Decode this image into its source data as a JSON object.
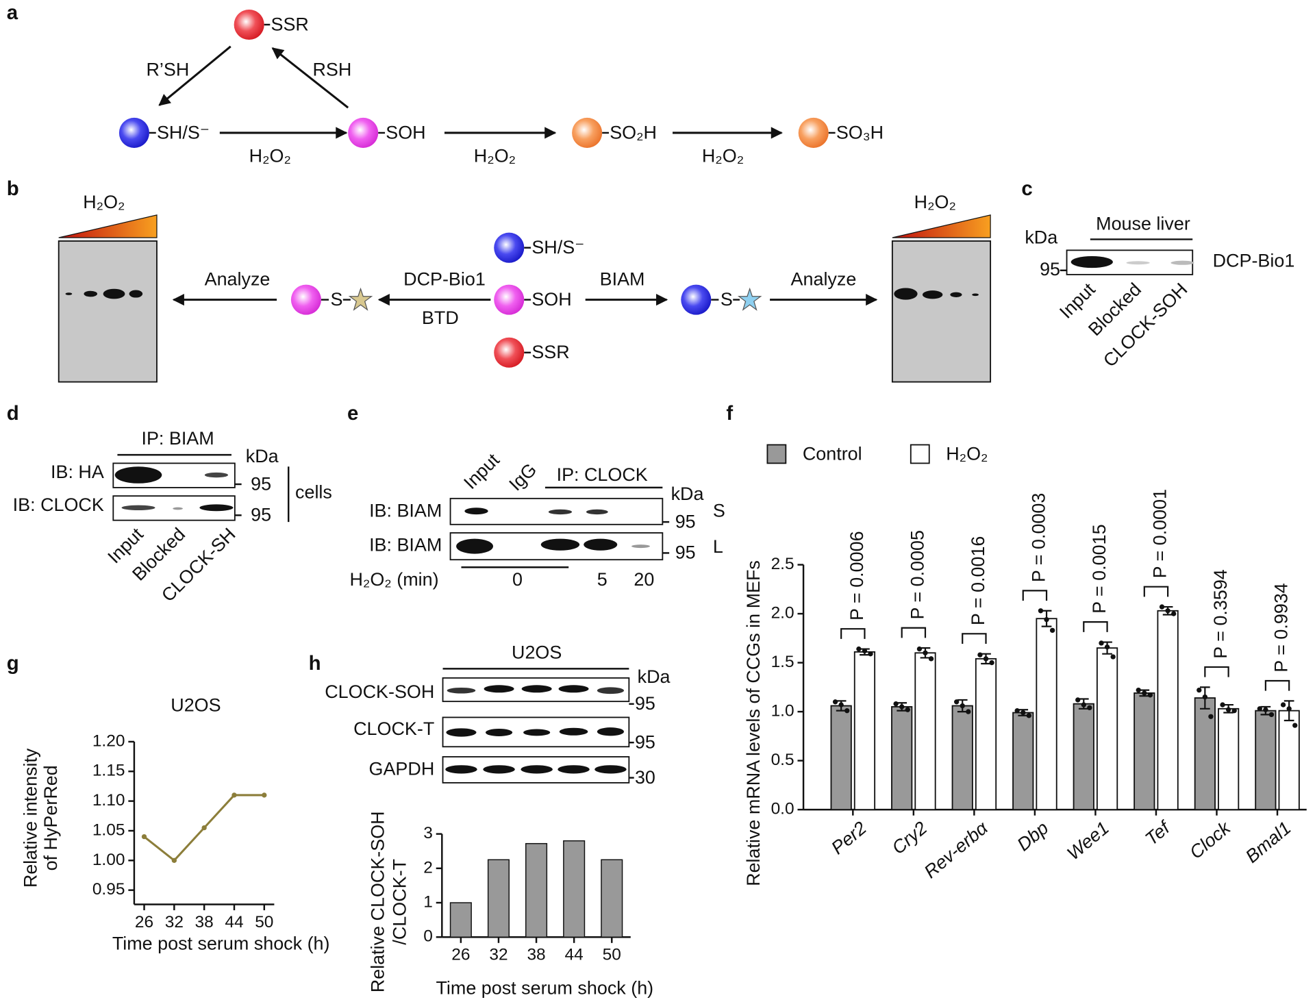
{
  "panel_labels": [
    "a",
    "b",
    "c",
    "d",
    "e",
    "f",
    "g",
    "h"
  ],
  "panel_a": {
    "nodes": [
      "SSR",
      "SH/S⁻",
      "SOH",
      "SO₂H",
      "SO₃H"
    ],
    "arrows": [
      "R’SH",
      "RSH",
      "H₂O₂",
      "H₂O₂",
      "H₂O₂"
    ]
  },
  "panel_b": {
    "gradient_labels": [
      "H₂O₂",
      "H₂O₂"
    ],
    "analyze": [
      "Analyze",
      "Analyze"
    ],
    "reagents": [
      "DCP-Bio1",
      "BTD",
      "BIAM"
    ],
    "center_nodes": [
      "SH/S⁻",
      "SOH",
      "SSR"
    ],
    "labeled_nodes": [
      "S",
      "S"
    ]
  },
  "panel_c": {
    "unit": "kDa",
    "sample": "Mouse liver",
    "marker": "95",
    "probe": "DCP-Bio1",
    "lanes": [
      "Input",
      "Blocked",
      "CLOCK-SOH"
    ]
  },
  "panel_d": {
    "ip": "IP: BIAM",
    "unit": "kDa",
    "blots": [
      "IB: HA",
      "IB: CLOCK"
    ],
    "markers": [
      "95",
      "95"
    ],
    "source": "cells",
    "lanes": [
      "Input",
      "Blocked",
      "CLOCK-SH"
    ]
  },
  "panel_e": {
    "lanes": [
      "Input",
      "IgG"
    ],
    "ip": "IP: CLOCK",
    "unit": "kDa",
    "blots": [
      "IB: BIAM",
      "IB: BIAM"
    ],
    "markers": [
      "95",
      "95"
    ],
    "gel_labels": [
      "S",
      "L"
    ],
    "treatment": "H₂O₂ (min)",
    "times": [
      "0",
      "5",
      "20"
    ]
  },
  "panel_h": {
    "cell_line": "U2OS",
    "unit": "kDa",
    "blots": [
      "CLOCK-SOH",
      "CLOCK-T",
      "GAPDH"
    ],
    "markers": [
      "95",
      "95",
      "30"
    ]
  },
  "chart_data": [
    {
      "type": "line",
      "title": "U2OS",
      "x_label": "Time post serum shock (h)",
      "y_label": [
        "Relative intensity",
        "of HyPerRed"
      ],
      "x": [
        26,
        32,
        38,
        44,
        50
      ],
      "values": [
        1.04,
        1.0,
        1.055,
        1.11,
        1.11
      ],
      "color": "#8c7e3a",
      "xlim": [
        24,
        52
      ],
      "xticks": [
        26,
        32,
        38,
        44,
        50
      ],
      "ylim": [
        0.95,
        1.2
      ],
      "yticks": [
        0.95,
        {
          "value": 1,
          "label": "1.00"
        },
        1.05,
        {
          "value": 1.1,
          "label": "1.10"
        },
        1.15,
        {
          "value": 1.2,
          "label": "1.20"
        }
      ]
    },
    {
      "type": "bar",
      "x_label": "Time post serum shock (h)",
      "y_label": [
        "Relative CLOCK-SOH",
        "/CLOCK-T"
      ],
      "categories": [
        "26",
        "32",
        "38",
        "44",
        "50"
      ],
      "values": [
        1.0,
        2.25,
        2.72,
        2.8,
        2.25
      ],
      "color": "#999999",
      "ylim": [
        0,
        3
      ],
      "yticks": [
        0,
        1,
        2,
        3
      ]
    },
    {
      "type": "bar",
      "y_label": "Relative mRNA levels of CCGs in MEFs",
      "legend": "top",
      "categories": [
        "Per2",
        "Cry2",
        "Rev-erbα",
        "Dbp",
        "Wee1",
        "Tef",
        "Clock",
        "Bmal1"
      ],
      "series": [
        {
          "name": "Control",
          "color": "#999999",
          "values": [
            1.06,
            1.05,
            1.06,
            0.99,
            1.08,
            1.19,
            1.14,
            1.01
          ],
          "errors": [
            0.05,
            0.04,
            0.06,
            0.03,
            0.05,
            0.03,
            0.11,
            0.04
          ],
          "points": [
            [
              1.1,
              1.07,
              1.01
            ],
            [
              1.08,
              1.05,
              1.02
            ],
            [
              1.1,
              1.06,
              1.0
            ],
            [
              1.01,
              0.99,
              0.96
            ],
            [
              1.12,
              1.07,
              1.04
            ],
            [
              1.22,
              1.19,
              1.17
            ],
            [
              1.22,
              1.15,
              0.95
            ],
            [
              1.03,
              1.02,
              0.97
            ]
          ]
        },
        {
          "name": "H₂O₂",
          "color": "#ffffff",
          "values": [
            1.61,
            1.6,
            1.54,
            1.95,
            1.65,
            2.03,
            1.03,
            1.01
          ],
          "errors": [
            0.03,
            0.05,
            0.05,
            0.08,
            0.06,
            0.04,
            0.04,
            0.1
          ],
          "points": [
            [
              1.64,
              1.62,
              1.59
            ],
            [
              1.64,
              1.6,
              1.54
            ],
            [
              1.58,
              1.54,
              1.5
            ],
            [
              2.03,
              1.94,
              1.83
            ],
            [
              1.7,
              1.66,
              1.56
            ],
            [
              2.07,
              2.03,
              2.0
            ],
            [
              1.07,
              1.02,
              1.01
            ],
            [
              1.07,
              1.03,
              0.86
            ]
          ]
        }
      ],
      "annotations": [
        "P = 0.0006",
        "P = 0.0005",
        "P = 0.0016",
        "P = 0.0003",
        "P = 0.0015",
        "P = 0.0001",
        "P = 0.3594",
        "P = 0.9934"
      ],
      "ylim": [
        0,
        2.5
      ],
      "yticks": [
        {
          "value": 0,
          "label": "0.0"
        },
        0.5,
        {
          "value": 1,
          "label": "1.0"
        },
        1.5,
        {
          "value": 2,
          "label": "2.0"
        },
        2.5
      ]
    }
  ]
}
